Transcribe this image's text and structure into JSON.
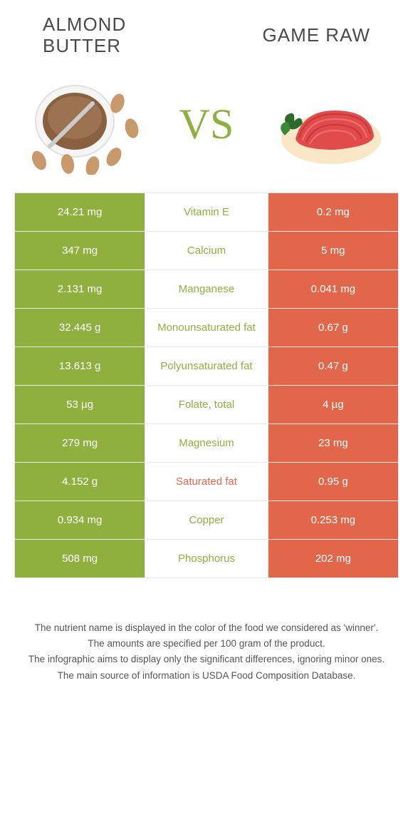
{
  "header": {
    "left_title": "ALMOND\nBUTTER",
    "right_title": "GAME RAW",
    "vs": "VS"
  },
  "colors": {
    "left_bg": "#8fb03e",
    "right_bg": "#e2674a",
    "mid_bg": "#ffffff",
    "left_text": "#8fb03e",
    "right_text": "#e2674a",
    "border": "#e8e8e8"
  },
  "rows": [
    {
      "left": "24.21 mg",
      "label": "Vitamin E",
      "right": "0.2 mg",
      "winner": "left"
    },
    {
      "left": "347 mg",
      "label": "Calcium",
      "right": "5 mg",
      "winner": "left"
    },
    {
      "left": "2.131 mg",
      "label": "Manganese",
      "right": "0.041 mg",
      "winner": "left"
    },
    {
      "left": "32.445 g",
      "label": "Monounsaturated fat",
      "right": "0.67 g",
      "winner": "left"
    },
    {
      "left": "13.613 g",
      "label": "Polyunsaturated fat",
      "right": "0.47 g",
      "winner": "left"
    },
    {
      "left": "53 µg",
      "label": "Folate, total",
      "right": "4 µg",
      "winner": "left"
    },
    {
      "left": "279 mg",
      "label": "Magnesium",
      "right": "23 mg",
      "winner": "left"
    },
    {
      "left": "4.152 g",
      "label": "Saturated fat",
      "right": "0.95 g",
      "winner": "right"
    },
    {
      "left": "0.934 mg",
      "label": "Copper",
      "right": "0.253 mg",
      "winner": "left"
    },
    {
      "left": "508 mg",
      "label": "Phosphorus",
      "right": "202 mg",
      "winner": "left"
    }
  ],
  "footnotes": [
    "The nutrient name is displayed in the color of the food we considered as 'winner'.",
    "The amounts are specified per 100 gram of the product.",
    "The infographic aims to display only the significant differences, ignoring minor ones.",
    "The main source of information is USDA Food Composition Database."
  ]
}
